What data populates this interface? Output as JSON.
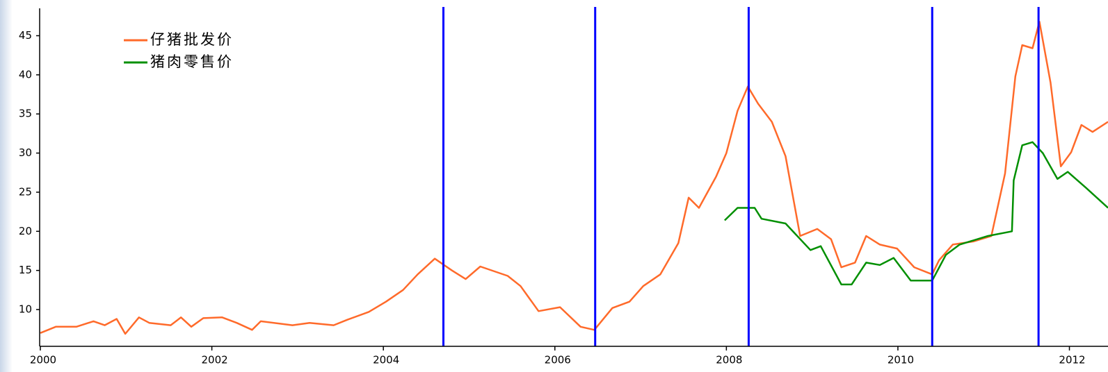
{
  "chart_data": {
    "type": "line",
    "xlim": [
      2000,
      2012.45
    ],
    "ylim": [
      5.3,
      48.5
    ],
    "xticks": [
      2000,
      2002,
      2004,
      2006,
      2008,
      2010,
      2012
    ],
    "yticks": [
      10,
      15,
      20,
      25,
      30,
      35,
      40,
      45
    ],
    "vlines": [
      2004.7,
      2006.47,
      2008.26,
      2010.4,
      2011.64
    ],
    "vline_color": "#0000ff",
    "legend": "upper left",
    "series": [
      {
        "name": "仔猪批发价",
        "color": "#ff6a2a",
        "x": [
          2000.0,
          2000.18,
          2000.42,
          2000.62,
          2000.75,
          2000.89,
          2000.99,
          2001.15,
          2001.27,
          2001.52,
          2001.64,
          2001.76,
          2001.9,
          2002.12,
          2002.29,
          2002.47,
          2002.57,
          2002.94,
          2003.14,
          2003.42,
          2003.58,
          2003.83,
          2004.03,
          2004.23,
          2004.4,
          2004.6,
          2004.8,
          2004.96,
          2005.13,
          2005.45,
          2005.6,
          2005.81,
          2006.06,
          2006.3,
          2006.46,
          2006.67,
          2006.87,
          2007.03,
          2007.23,
          2007.44,
          2007.56,
          2007.68,
          2007.88,
          2008.0,
          2008.13,
          2008.25,
          2008.37,
          2008.53,
          2008.69,
          2008.86,
          2009.06,
          2009.22,
          2009.34,
          2009.5,
          2009.63,
          2009.79,
          2009.99,
          2010.19,
          2010.4,
          2010.48,
          2010.64,
          2010.88,
          2011.09,
          2011.25,
          2011.37,
          2011.45,
          2011.57,
          2011.65,
          2011.78,
          2011.9,
          2012.02,
          2012.14,
          2012.27,
          2012.45
        ],
        "values": [
          7.0,
          7.8,
          7.8,
          8.5,
          8.0,
          8.8,
          6.9,
          9.0,
          8.3,
          8.0,
          9.0,
          7.8,
          8.9,
          9.0,
          8.3,
          7.4,
          8.5,
          8.0,
          8.3,
          8.0,
          8.7,
          9.7,
          11.0,
          12.5,
          14.5,
          16.5,
          15.0,
          13.9,
          15.5,
          14.3,
          13.0,
          9.8,
          10.3,
          7.8,
          7.4,
          10.2,
          11.0,
          13.0,
          14.5,
          18.5,
          24.3,
          23.0,
          27.0,
          30.0,
          35.4,
          38.5,
          36.3,
          34.0,
          29.6,
          19.4,
          20.3,
          19.0,
          15.4,
          16.0,
          19.4,
          18.3,
          17.8,
          15.4,
          14.5,
          16.3,
          18.3,
          18.7,
          19.4,
          27.4,
          39.8,
          43.8,
          43.4,
          46.8,
          39.0,
          28.3,
          30.1,
          33.6,
          32.7,
          34.0
        ]
      },
      {
        "name": "猪肉零售价",
        "color": "#008f00",
        "x": [
          2007.98,
          2008.13,
          2008.33,
          2008.41,
          2008.69,
          2008.98,
          2009.1,
          2009.34,
          2009.46,
          2009.63,
          2009.79,
          2009.95,
          2010.15,
          2010.4,
          2010.56,
          2010.72,
          2011.05,
          2011.33,
          2011.35,
          2011.45,
          2011.57,
          2011.69,
          2011.86,
          2011.98,
          2012.19,
          2012.45
        ],
        "values": [
          21.4,
          23.0,
          23.0,
          21.6,
          21.0,
          17.6,
          18.1,
          13.2,
          13.2,
          16.0,
          15.7,
          16.6,
          13.7,
          13.7,
          17.0,
          18.3,
          19.4,
          20.0,
          26.5,
          31.0,
          31.4,
          30.0,
          26.7,
          27.6,
          25.6,
          23.0
        ]
      }
    ]
  }
}
